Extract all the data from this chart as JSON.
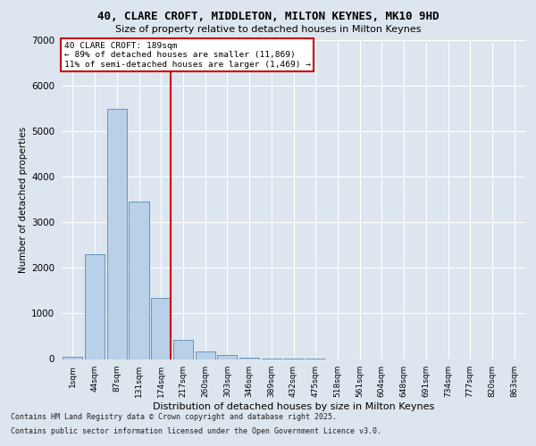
{
  "title1": "40, CLARE CROFT, MIDDLETON, MILTON KEYNES, MK10 9HD",
  "title2": "Size of property relative to detached houses in Milton Keynes",
  "xlabel": "Distribution of detached houses by size in Milton Keynes",
  "ylabel": "Number of detached properties",
  "categories": [
    "1sqm",
    "44sqm",
    "87sqm",
    "131sqm",
    "174sqm",
    "217sqm",
    "260sqm",
    "303sqm",
    "346sqm",
    "389sqm",
    "432sqm",
    "475sqm",
    "518sqm",
    "561sqm",
    "604sqm",
    "648sqm",
    "691sqm",
    "734sqm",
    "777sqm",
    "820sqm",
    "863sqm"
  ],
  "bar_values": [
    50,
    2300,
    5500,
    3450,
    1350,
    430,
    175,
    90,
    20,
    5,
    2,
    1,
    0,
    0,
    0,
    0,
    0,
    0,
    0,
    0,
    0
  ],
  "bar_color": "#b8d0e8",
  "bar_edge_color": "#5a8ab0",
  "vline_color": "#cc0000",
  "vline_pos": 4.45,
  "ylim": [
    0,
    7000
  ],
  "yticks": [
    0,
    1000,
    2000,
    3000,
    4000,
    5000,
    6000,
    7000
  ],
  "annotation_title": "40 CLARE CROFT: 189sqm",
  "annotation_line1": "← 89% of detached houses are smaller (11,869)",
  "annotation_line2": "11% of semi-detached houses are larger (1,469) →",
  "footer1": "Contains HM Land Registry data © Crown copyright and database right 2025.",
  "footer2": "Contains public sector information licensed under the Open Government Licence v3.0.",
  "background_color": "#dde5ef",
  "plot_bg_color": "#dde5ef",
  "grid_color": "#ffffff"
}
